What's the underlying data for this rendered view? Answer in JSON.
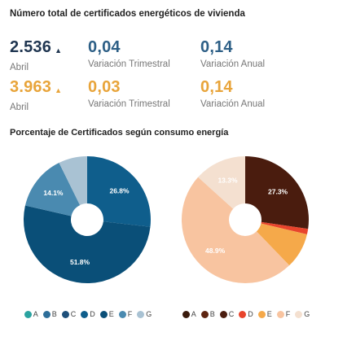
{
  "header": {
    "title": "Número total de certificados energéticos de vivienda"
  },
  "stats": [
    {
      "value": "2.536",
      "arrow": "▲",
      "label": "Abril"
    },
    {
      "value": "0,04",
      "label": "Variación Trimestral"
    },
    {
      "value": "0,14",
      "label": "Variación Anual"
    },
    {
      "value": "3.963",
      "arrow": "▲",
      "label": "Abril"
    },
    {
      "value": "0,03",
      "label": "Variación Trimestral"
    },
    {
      "value": "0,14",
      "label": "Variación Anual"
    }
  ],
  "section": {
    "title": "Porcentaje de Certificados según consumo energía"
  },
  "chart_data": [
    {
      "type": "pie",
      "donut": true,
      "categories": [
        "A",
        "B",
        "C",
        "D",
        "E",
        "F",
        "G"
      ],
      "values": [
        0,
        0,
        0,
        26.8,
        51.8,
        14.1,
        7.3
      ],
      "data_labels": [
        "",
        "",
        "",
        "26.8%",
        "51.8%",
        "14.1%",
        ""
      ],
      "colors": [
        "#2aa3a0",
        "#2d6e99",
        "#1d4f7a",
        "#0f5e8c",
        "#0a4f78",
        "#4a8ab0",
        "#a9c2d3"
      ],
      "legend_position": "bottom"
    },
    {
      "type": "pie",
      "donut": true,
      "categories": [
        "A",
        "B",
        "C",
        "D",
        "E",
        "F",
        "G"
      ],
      "values": [
        0,
        0,
        27.3,
        1.4,
        9.1,
        48.9,
        13.3
      ],
      "data_labels": [
        "",
        "",
        "27.3%",
        "",
        "",
        "48.9%",
        "13.3%"
      ],
      "colors": [
        "#3a1a0c",
        "#5e2511",
        "#4a1c0e",
        "#e8442c",
        "#f5a94a",
        "#f8c4a0",
        "#f4e0d0"
      ],
      "legend_position": "bottom"
    }
  ]
}
